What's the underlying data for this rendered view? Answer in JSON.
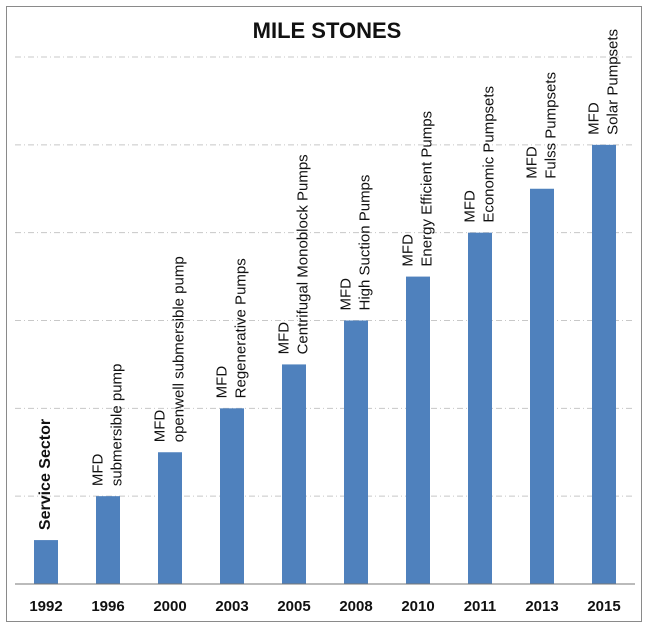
{
  "chart_data": {
    "type": "bar",
    "title": "MILE STONES",
    "xlabel": "",
    "ylabel": "",
    "categories": [
      "1992",
      "1996",
      "2000",
      "2003",
      "2005",
      "2008",
      "2010",
      "2011",
      "2013",
      "2015"
    ],
    "values": [
      1,
      2,
      3,
      4,
      5,
      6,
      7,
      8,
      9,
      10
    ],
    "ylim": [
      0,
      12
    ],
    "grid": true,
    "legend": "none",
    "bar_color": "#4f81bd",
    "annotations": [
      [
        "Service Sector"
      ],
      [
        "MFD",
        "submersible pump"
      ],
      [
        "MFD",
        "openwell submersible pump"
      ],
      [
        "MFD",
        "Regenerative Pumps"
      ],
      [
        "MFD",
        "Centrifugal Monoblock Pumps"
      ],
      [
        "MFD",
        "High Suction Pumps"
      ],
      [
        "MFD",
        "Energy Efficient Pumps"
      ],
      [
        "MFD",
        "Economic Pumpsets"
      ],
      [
        "MFD",
        "Fulss Pumpsets"
      ],
      [
        "MFD",
        "Solar Pumpsets"
      ]
    ]
  }
}
